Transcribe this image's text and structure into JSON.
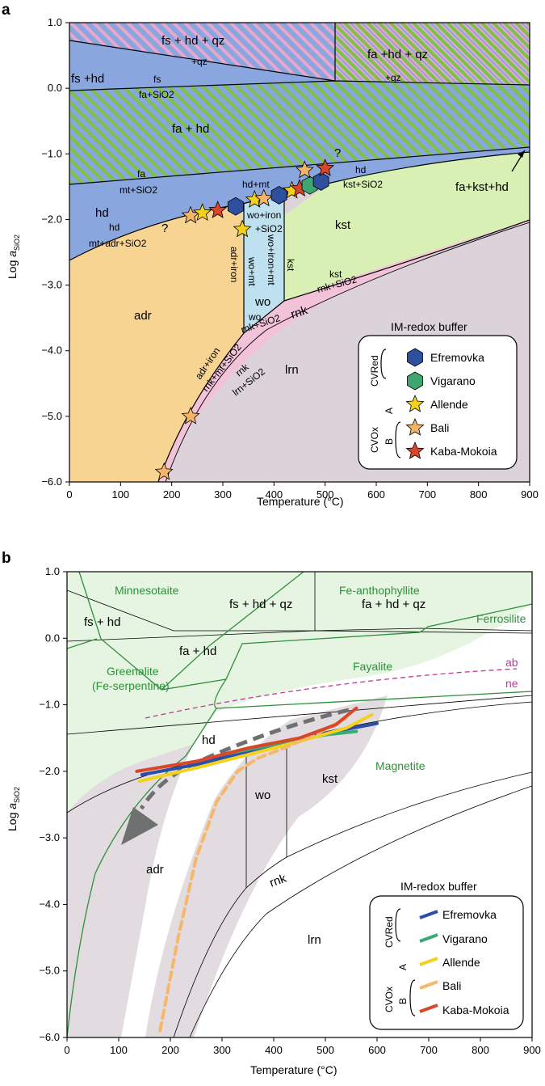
{
  "chart_data": [
    {
      "panel": "a",
      "type": "phase-diagram",
      "xlabel": "Temperature (°C)",
      "ylabel": "Log aSiO2",
      "xlim": [
        0,
        900
      ],
      "ylim": [
        -6.0,
        1.0
      ],
      "xticks": [
        "0",
        "100",
        "200",
        "300",
        "400",
        "500",
        "600",
        "700",
        "800",
        "900"
      ],
      "yticks": [
        "1.0",
        "0.0",
        "-1.0",
        "-2.0",
        "-3.0",
        "-4.0",
        "-5.0",
        "-6.0"
      ],
      "regions": {
        "fs_hd_qz": "fs + hd + qz",
        "fa_hd_qz": "fa +hd + qz",
        "fs_hd": "fs +hd",
        "fa_hd": "fa + hd",
        "hd": "hd",
        "kst": "kst",
        "adr": "adr",
        "wo": "wo",
        "lrn": "lrn",
        "fa_kst_hd": "fa+kst+hd"
      },
      "reactions": {
        "qz_upper": "+qz",
        "qz_right": "+qz",
        "fs": "fs",
        "fa_sio2": "fa+SiO2",
        "fa": "fa",
        "mt_sio2": "mt+SiO2",
        "hd_mt": "hd+mt",
        "hd2": "hd",
        "kst_sio2_top": "kst+SiO2",
        "hd3": "hd",
        "mt_adr_sio2": "mt+adr+SiO2",
        "wo_iron": "wo+iron",
        "sio2": "+SiO2",
        "adr_iron": "adr+iron",
        "wo_mt": "wo+mt",
        "wo_iron_mt": "wo+iron+mt",
        "kst_v": "kst",
        "wo2": "wo",
        "rnk_sio2": "rnk+SiO2",
        "rnk": "rnk",
        "kst_upper": "kst",
        "rnk_sio2_upper": "rnk+SiO2",
        "adr_iron2": "adr+iron",
        "rnk_mt_sio2": "rnk+mt+SiO2",
        "rnk2": "rnk",
        "lrn_sio2": "lrn+SiO2",
        "q1": "?",
        "q2": "?"
      },
      "legend": {
        "title": "IM-redox buffer",
        "groups": [
          "CVRed",
          "CVOx",
          "A",
          "B"
        ],
        "items": [
          "Efremovka",
          "Vigarano",
          "Allende",
          "Bali",
          "Kaba-Mokoia"
        ]
      },
      "points": [
        {
          "sample": "Bali",
          "x": 185,
          "y": -5.85
        },
        {
          "sample": "Bali",
          "x": 237,
          "y": -5.0
        },
        {
          "sample": "Bali",
          "x": 237,
          "y": -1.94
        },
        {
          "sample": "Allende",
          "x": 260,
          "y": -1.9
        },
        {
          "sample": "Kaba-Mokoia",
          "x": 290,
          "y": -1.86
        },
        {
          "sample": "Efremovka",
          "x": 325,
          "y": -1.8
        },
        {
          "sample": "Allende",
          "x": 338,
          "y": -2.15
        },
        {
          "sample": "Allende",
          "x": 362,
          "y": -1.7
        },
        {
          "sample": "Bali",
          "x": 380,
          "y": -1.68
        },
        {
          "sample": "Efremovka",
          "x": 410,
          "y": -1.63
        },
        {
          "sample": "Allende",
          "x": 435,
          "y": -1.56
        },
        {
          "sample": "Kaba-Mokoia",
          "x": 450,
          "y": -1.53
        },
        {
          "sample": "Vigarano",
          "x": 470,
          "y": -1.48
        },
        {
          "sample": "Bali",
          "x": 460,
          "y": -1.25
        },
        {
          "sample": "Efremovka",
          "x": 492,
          "y": -1.42
        },
        {
          "sample": "Kaba-Mokoia",
          "x": 500,
          "y": -1.22
        }
      ]
    },
    {
      "panel": "b",
      "type": "phase-diagram",
      "xlabel": "Temperature (°C)",
      "ylabel": "Log aSiO2",
      "xlim": [
        0,
        900
      ],
      "ylim": [
        -6.0,
        1.0
      ],
      "xticks": [
        "0",
        "100",
        "200",
        "300",
        "400",
        "500",
        "600",
        "700",
        "800",
        "900"
      ],
      "yticks": [
        "1.0",
        "0.0",
        "-1.0",
        "-2.0",
        "-3.0",
        "-4.0",
        "-5.0",
        "-6.0"
      ],
      "regions": {
        "minnesotaite": "Minnesotaite",
        "fe_anthophyllite": "Fe-anthophyllite",
        "ferrosilite": "Ferrosilite",
        "fayalite": "Fayalite",
        "greenalite": "Greenalite",
        "fe_serpentine": "(Fe-serpentine)",
        "magnetite": "Magnetite",
        "fs_hd": "fs + hd",
        "fs_hd_qz": "fs + hd + qz",
        "fa_hd_qz": "fa + hd + qz",
        "fa_hd": "fa + hd",
        "hd": "hd",
        "kst": "kst",
        "wo": "wo",
        "adr": "adr",
        "rnk": "rnk",
        "lrn": "lrn",
        "ab": "ab",
        "ne": "ne"
      },
      "legend": {
        "title": "IM-redox buffer",
        "groups": [
          "CVRed",
          "CVOx",
          "A",
          "B"
        ],
        "items": [
          "Efremovka",
          "Vigarano",
          "Allende",
          "Bali",
          "Kaba-Mokoia"
        ]
      },
      "series": [
        {
          "name": "Efremovka",
          "x": [
            145,
            250,
            350,
            450,
            600
          ],
          "y": [
            -2.05,
            -1.9,
            -1.7,
            -1.5,
            -1.28
          ]
        },
        {
          "name": "Vigarano",
          "x": [
            300,
            400,
            500,
            560
          ],
          "y": [
            -1.75,
            -1.6,
            -1.45,
            -1.4
          ]
        },
        {
          "name": "Allende",
          "x": [
            140,
            250,
            350,
            450,
            540,
            590
          ],
          "y": [
            -2.15,
            -1.95,
            -1.75,
            -1.55,
            -1.35,
            -1.15
          ]
        },
        {
          "name": "Bali",
          "x": [
            180,
            215,
            250,
            290,
            330,
            370,
            420,
            480,
            540
          ],
          "y": [
            -5.9,
            -4.5,
            -3.3,
            -2.45,
            -2.0,
            -1.8,
            -1.65,
            -1.45,
            -1.2
          ]
        },
        {
          "name": "Kaba-Mokoia",
          "x": [
            135,
            250,
            350,
            450,
            520,
            560
          ],
          "y": [
            -2.0,
            -1.85,
            -1.65,
            -1.5,
            -1.3,
            -1.05
          ]
        }
      ],
      "colors": {
        "Efremovka": "#2b4fa6",
        "Vigarano": "#3aaa78",
        "Allende": "#f2d21b",
        "Bali": "#f5b86b",
        "Kaba-Mokoia": "#d9472b"
      }
    }
  ],
  "figure": {
    "panel_a_label": "a",
    "panel_b_label": "b"
  }
}
